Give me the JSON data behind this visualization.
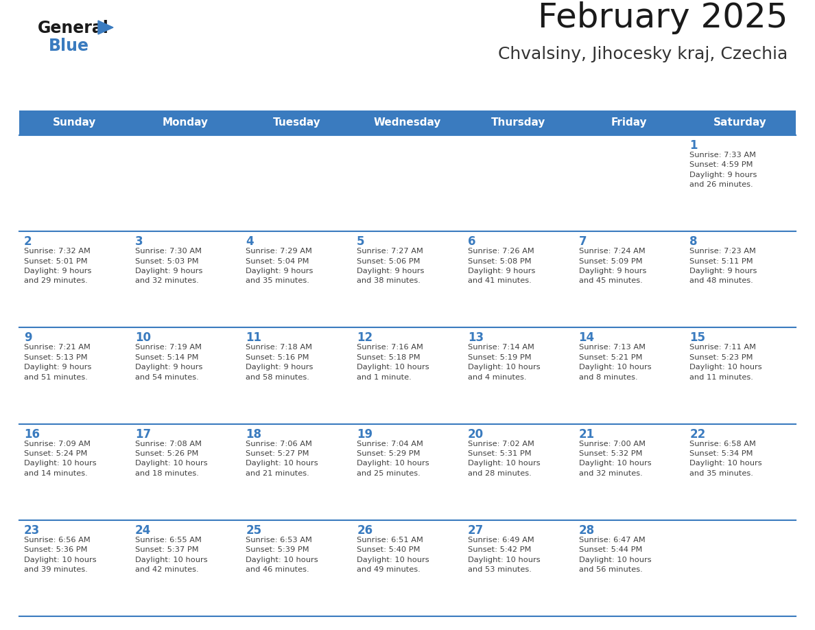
{
  "title": "February 2025",
  "subtitle": "Chvalsiny, Jihocesky kraj, Czechia",
  "days_of_week": [
    "Sunday",
    "Monday",
    "Tuesday",
    "Wednesday",
    "Thursday",
    "Friday",
    "Saturday"
  ],
  "header_bg": "#3a7bbf",
  "header_text": "#ffffff",
  "cell_bg": "#ffffff",
  "border_color": "#3a7bbf",
  "day_number_color": "#3a7bbf",
  "info_color": "#404040",
  "logo_general_color": "#1a1a1a",
  "logo_blue_color": "#3a7bbf",
  "title_color": "#1a1a1a",
  "subtitle_color": "#333333",
  "weeks": [
    [
      {
        "day": null,
        "info": ""
      },
      {
        "day": null,
        "info": ""
      },
      {
        "day": null,
        "info": ""
      },
      {
        "day": null,
        "info": ""
      },
      {
        "day": null,
        "info": ""
      },
      {
        "day": null,
        "info": ""
      },
      {
        "day": 1,
        "info": "Sunrise: 7:33 AM\nSunset: 4:59 PM\nDaylight: 9 hours\nand 26 minutes."
      }
    ],
    [
      {
        "day": 2,
        "info": "Sunrise: 7:32 AM\nSunset: 5:01 PM\nDaylight: 9 hours\nand 29 minutes."
      },
      {
        "day": 3,
        "info": "Sunrise: 7:30 AM\nSunset: 5:03 PM\nDaylight: 9 hours\nand 32 minutes."
      },
      {
        "day": 4,
        "info": "Sunrise: 7:29 AM\nSunset: 5:04 PM\nDaylight: 9 hours\nand 35 minutes."
      },
      {
        "day": 5,
        "info": "Sunrise: 7:27 AM\nSunset: 5:06 PM\nDaylight: 9 hours\nand 38 minutes."
      },
      {
        "day": 6,
        "info": "Sunrise: 7:26 AM\nSunset: 5:08 PM\nDaylight: 9 hours\nand 41 minutes."
      },
      {
        "day": 7,
        "info": "Sunrise: 7:24 AM\nSunset: 5:09 PM\nDaylight: 9 hours\nand 45 minutes."
      },
      {
        "day": 8,
        "info": "Sunrise: 7:23 AM\nSunset: 5:11 PM\nDaylight: 9 hours\nand 48 minutes."
      }
    ],
    [
      {
        "day": 9,
        "info": "Sunrise: 7:21 AM\nSunset: 5:13 PM\nDaylight: 9 hours\nand 51 minutes."
      },
      {
        "day": 10,
        "info": "Sunrise: 7:19 AM\nSunset: 5:14 PM\nDaylight: 9 hours\nand 54 minutes."
      },
      {
        "day": 11,
        "info": "Sunrise: 7:18 AM\nSunset: 5:16 PM\nDaylight: 9 hours\nand 58 minutes."
      },
      {
        "day": 12,
        "info": "Sunrise: 7:16 AM\nSunset: 5:18 PM\nDaylight: 10 hours\nand 1 minute."
      },
      {
        "day": 13,
        "info": "Sunrise: 7:14 AM\nSunset: 5:19 PM\nDaylight: 10 hours\nand 4 minutes."
      },
      {
        "day": 14,
        "info": "Sunrise: 7:13 AM\nSunset: 5:21 PM\nDaylight: 10 hours\nand 8 minutes."
      },
      {
        "day": 15,
        "info": "Sunrise: 7:11 AM\nSunset: 5:23 PM\nDaylight: 10 hours\nand 11 minutes."
      }
    ],
    [
      {
        "day": 16,
        "info": "Sunrise: 7:09 AM\nSunset: 5:24 PM\nDaylight: 10 hours\nand 14 minutes."
      },
      {
        "day": 17,
        "info": "Sunrise: 7:08 AM\nSunset: 5:26 PM\nDaylight: 10 hours\nand 18 minutes."
      },
      {
        "day": 18,
        "info": "Sunrise: 7:06 AM\nSunset: 5:27 PM\nDaylight: 10 hours\nand 21 minutes."
      },
      {
        "day": 19,
        "info": "Sunrise: 7:04 AM\nSunset: 5:29 PM\nDaylight: 10 hours\nand 25 minutes."
      },
      {
        "day": 20,
        "info": "Sunrise: 7:02 AM\nSunset: 5:31 PM\nDaylight: 10 hours\nand 28 minutes."
      },
      {
        "day": 21,
        "info": "Sunrise: 7:00 AM\nSunset: 5:32 PM\nDaylight: 10 hours\nand 32 minutes."
      },
      {
        "day": 22,
        "info": "Sunrise: 6:58 AM\nSunset: 5:34 PM\nDaylight: 10 hours\nand 35 minutes."
      }
    ],
    [
      {
        "day": 23,
        "info": "Sunrise: 6:56 AM\nSunset: 5:36 PM\nDaylight: 10 hours\nand 39 minutes."
      },
      {
        "day": 24,
        "info": "Sunrise: 6:55 AM\nSunset: 5:37 PM\nDaylight: 10 hours\nand 42 minutes."
      },
      {
        "day": 25,
        "info": "Sunrise: 6:53 AM\nSunset: 5:39 PM\nDaylight: 10 hours\nand 46 minutes."
      },
      {
        "day": 26,
        "info": "Sunrise: 6:51 AM\nSunset: 5:40 PM\nDaylight: 10 hours\nand 49 minutes."
      },
      {
        "day": 27,
        "info": "Sunrise: 6:49 AM\nSunset: 5:42 PM\nDaylight: 10 hours\nand 53 minutes."
      },
      {
        "day": 28,
        "info": "Sunrise: 6:47 AM\nSunset: 5:44 PM\nDaylight: 10 hours\nand 56 minutes."
      },
      {
        "day": null,
        "info": ""
      }
    ]
  ]
}
